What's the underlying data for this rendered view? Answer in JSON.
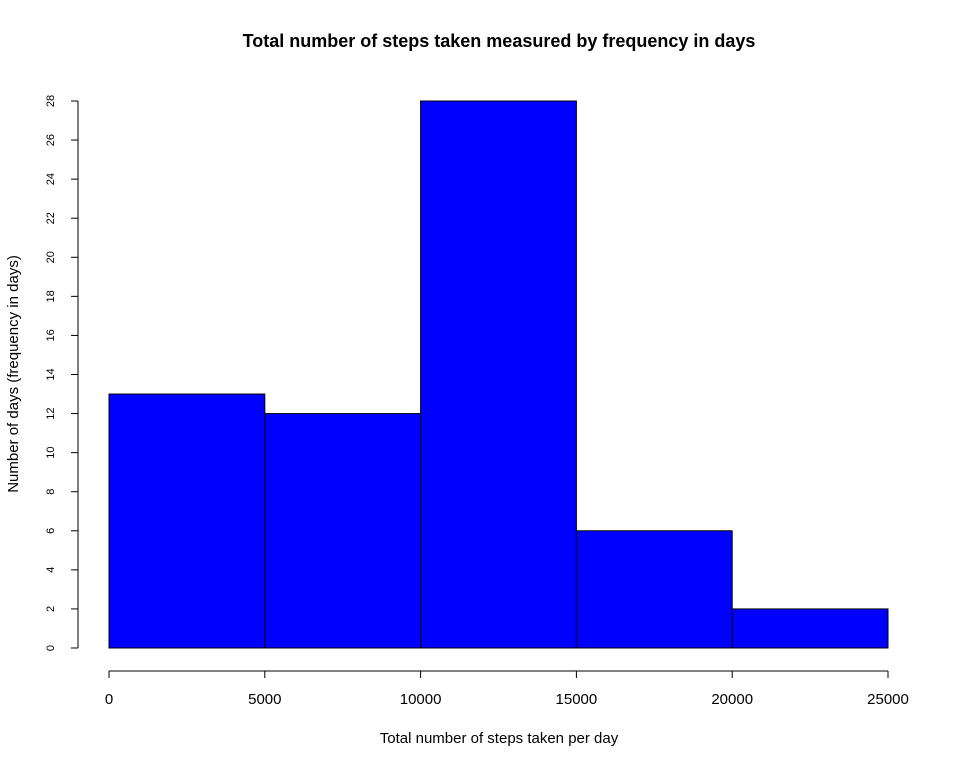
{
  "chart_data": {
    "type": "bar",
    "title": "Total number of steps taken measured by frequency in days",
    "xlabel": "Total number of steps taken per day",
    "ylabel": "Number of days (frequency in days)",
    "bin_edges": [
      0,
      5000,
      10000,
      15000,
      20000,
      25000
    ],
    "values": [
      13,
      12,
      28,
      6,
      2
    ],
    "xlim": [
      0,
      25000
    ],
    "ylim": [
      0,
      28
    ],
    "x_ticks": [
      "0",
      "5000",
      "10000",
      "15000",
      "20000",
      "25000"
    ],
    "y_ticks": [
      "0",
      "2",
      "4",
      "6",
      "8",
      "10",
      "12",
      "14",
      "16",
      "18",
      "20",
      "22",
      "24",
      "26",
      "28"
    ],
    "bar_color": "#0000ff",
    "bar_edge_color": "#000000",
    "grid": false,
    "legend": "none"
  }
}
